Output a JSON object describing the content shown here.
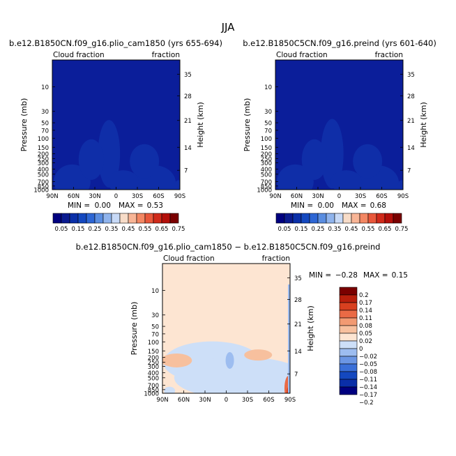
{
  "figure": {
    "season": "JJA"
  },
  "colors": {
    "seq_bar": [
      "#00007f",
      "#0a1a8f",
      "#0a2fa8",
      "#1448bf",
      "#2d66d4",
      "#5a8de0",
      "#8fb3ec",
      "#c7d9f6",
      "#f7dcc8",
      "#f8b596",
      "#f38763",
      "#e8573a",
      "#d02a1a",
      "#b30f0a",
      "#7a0000"
    ],
    "seq_stops": [
      [
        0.0,
        "#0b1e9a"
      ],
      [
        0.06,
        "#0f2ea8"
      ],
      [
        0.1,
        "#1848c0"
      ],
      [
        0.15,
        "#3672d8"
      ],
      [
        0.2,
        "#6f9de6"
      ],
      [
        0.28,
        "#a8c4f0"
      ],
      [
        0.35,
        "#d6e3fa"
      ],
      [
        0.42,
        "#f6f0ea"
      ],
      [
        0.55,
        "#ffffff"
      ]
    ],
    "div_bar": [
      "#00007f",
      "#0a2fa8",
      "#1448bf",
      "#3a6fd8",
      "#6b96e4",
      "#9dbdf0",
      "#cddff8",
      "#fde5d2",
      "#f7c09e",
      "#f29a72",
      "#ea6a45",
      "#d8401f",
      "#b81f0c",
      "#7a0000"
    ],
    "div_bg": "#fde5d2",
    "div_neg": "#cddff8",
    "div_neg2": "#9dbdf0",
    "div_pos": "#f7c09e",
    "div_pos2": "#ea6a45",
    "div_pos3": "#d8401f"
  },
  "chart_data": [
    {
      "type": "heatmap",
      "title": "b.e12.B1850CN.f09_g16.plio_cam1850 (yrs 655-694)",
      "left_label": "Cloud fraction",
      "right_label": "fraction",
      "ylabel": "Pressure (mb)",
      "y2label": "Height (km)",
      "x_ticks": [
        "90N",
        "60N",
        "30N",
        "0",
        "30S",
        "60S",
        "90S"
      ],
      "x_range": [
        90,
        -90
      ],
      "y_ticks": [
        "10",
        "30",
        "50",
        "70",
        "100",
        "150",
        "200",
        "250",
        "300",
        "400",
        "500",
        "700",
        "850",
        "1000"
      ],
      "y_tick_values": [
        10,
        30,
        50,
        70,
        100,
        150,
        200,
        250,
        300,
        400,
        500,
        700,
        850,
        1000
      ],
      "y_range": [
        3,
        1000
      ],
      "y_log": true,
      "height_ticks": [
        "35",
        "28",
        "21",
        "14",
        "7"
      ],
      "height_tick_pressures": [
        5.7,
        15.0,
        45.0,
        150,
        420
      ],
      "min_label": "MIN =",
      "min_value": "0.00",
      "max_label": "MAX =",
      "max_value": "0.53",
      "colorbar_levels": [
        "0.05",
        "0.15",
        "0.25",
        "0.35",
        "0.45",
        "0.55",
        "0.65",
        "0.75"
      ]
    },
    {
      "type": "heatmap",
      "title": "b.e12.B1850C5CN.f09_g16.preind (yrs 601-640)",
      "left_label": "Cloud fraction",
      "right_label": "fraction",
      "ylabel": "Pressure (mb)",
      "y2label": "Height (km)",
      "x_ticks": [
        "90N",
        "60N",
        "30N",
        "0",
        "30S",
        "60S",
        "90S"
      ],
      "x_range": [
        90,
        -90
      ],
      "y_ticks": [
        "10",
        "30",
        "50",
        "70",
        "100",
        "150",
        "200",
        "250",
        "300",
        "400",
        "500",
        "700",
        "850",
        "1000"
      ],
      "y_tick_values": [
        10,
        30,
        50,
        70,
        100,
        150,
        200,
        250,
        300,
        400,
        500,
        700,
        850,
        1000
      ],
      "y_range": [
        3,
        1000
      ],
      "y_log": true,
      "height_ticks": [
        "35",
        "28",
        "21",
        "14",
        "7"
      ],
      "height_tick_pressures": [
        5.7,
        15.0,
        45.0,
        150,
        420
      ],
      "min_label": "MIN =",
      "min_value": "0.00",
      "max_label": "MAX =",
      "max_value": "0.68",
      "colorbar_levels": [
        "0.05",
        "0.15",
        "0.25",
        "0.35",
        "0.45",
        "0.55",
        "0.65",
        "0.75"
      ]
    },
    {
      "type": "heatmap",
      "title": "b.e12.B1850CN.f09_g16.plio_cam1850 − b.e12.B1850C5CN.f09_g16.preind",
      "left_label": "Cloud fraction",
      "right_label": "fraction",
      "ylabel": "Pressure (mb)",
      "y2label": "Height (km)",
      "x_ticks": [
        "90N",
        "60N",
        "30N",
        "0",
        "30S",
        "60S",
        "90S"
      ],
      "x_range": [
        90,
        -90
      ],
      "y_ticks": [
        "10",
        "30",
        "50",
        "70",
        "100",
        "150",
        "200",
        "250",
        "300",
        "400",
        "500",
        "700",
        "850",
        "1000"
      ],
      "y_tick_values": [
        10,
        30,
        50,
        70,
        100,
        150,
        200,
        250,
        300,
        400,
        500,
        700,
        850,
        1000
      ],
      "y_range": [
        3,
        1000
      ],
      "y_log": true,
      "height_ticks": [
        "35",
        "28",
        "21",
        "14",
        "7"
      ],
      "height_tick_pressures": [
        5.7,
        15.0,
        45.0,
        150,
        420
      ],
      "min_label": "MIN =",
      "min_value": "−0.28",
      "max_label": "MAX =",
      "max_value": "0.15",
      "colorbar_levels": [
        "0.2",
        "0.17",
        "0.14",
        "0.11",
        "0.08",
        "0.05",
        "0.02",
        "0",
        "−0.02",
        "−0.05",
        "−0.08",
        "−0.11",
        "−0.14",
        "−0.17",
        "−0.2"
      ]
    }
  ]
}
